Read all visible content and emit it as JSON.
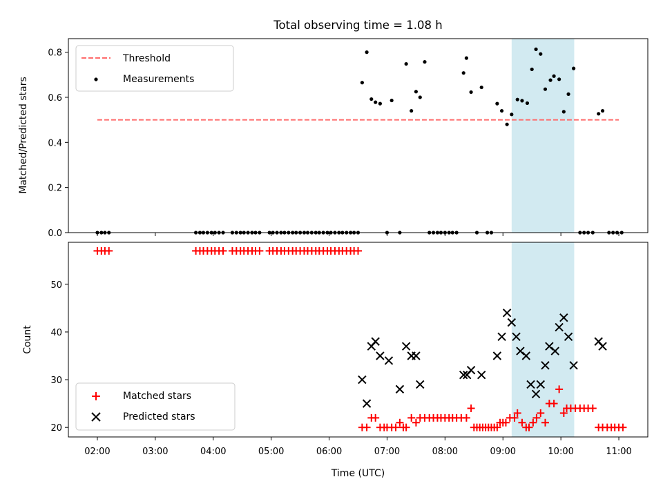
{
  "chart_data": {
    "type": "scatter",
    "title": "Total observing time = 1.08 h",
    "xlabel": "Time (UTC)",
    "x_unit": "hours (UTC)",
    "xlim": [
      1.5,
      11.5
    ],
    "x_ticks": [
      {
        "value": 2,
        "label": "02:00"
      },
      {
        "value": 3,
        "label": "03:00"
      },
      {
        "value": 4,
        "label": "04:00"
      },
      {
        "value": 5,
        "label": "05:00"
      },
      {
        "value": 6,
        "label": "06:00"
      },
      {
        "value": 7,
        "label": "07:00"
      },
      {
        "value": 8,
        "label": "08:00"
      },
      {
        "value": 9,
        "label": "09:00"
      },
      {
        "value": 10,
        "label": "10:00"
      },
      {
        "value": 11,
        "label": "11:00"
      }
    ],
    "highlight_span": {
      "start": 9.15,
      "end": 10.23,
      "color": "#add8e6"
    },
    "panels": [
      {
        "ylabel": "Matched/Predicted stars",
        "ylim": [
          0,
          0.86
        ],
        "y_ticks": [
          "0.0",
          "0.2",
          "0.4",
          "0.6",
          "0.8"
        ],
        "legend": {
          "position": "upper left",
          "entries": [
            "Threshold",
            "Measurements"
          ]
        },
        "threshold": {
          "name": "Threshold",
          "value": 0.5,
          "x_start": 2.0,
          "x_end": 11.0,
          "color": "#ff6b6b"
        },
        "series": [
          {
            "name": "Measurements",
            "color": "#000000",
            "x": [
              2.0,
              2.07,
              2.13,
              2.2,
              3.7,
              3.77,
              3.83,
              3.9,
              3.97,
              4.03,
              4.1,
              4.17,
              4.33,
              4.4,
              4.47,
              4.53,
              4.6,
              4.67,
              4.73,
              4.8,
              4.97,
              5.03,
              5.1,
              5.17,
              5.23,
              5.3,
              5.37,
              5.43,
              5.5,
              5.57,
              5.63,
              5.7,
              5.77,
              5.83,
              5.9,
              5.97,
              6.03,
              6.1,
              6.17,
              6.23,
              6.3,
              6.37,
              6.43,
              6.5,
              6.57,
              6.65,
              6.73,
              6.8,
              6.88,
              7.0,
              7.08,
              7.22,
              7.33,
              7.42,
              7.5,
              7.57,
              7.65,
              7.73,
              7.8,
              7.87,
              7.93,
              8.0,
              8.07,
              8.13,
              8.2,
              8.32,
              8.37,
              8.45,
              8.55,
              8.63,
              8.73,
              8.8,
              8.9,
              8.98,
              9.07,
              9.15,
              9.25,
              9.33,
              9.42,
              9.5,
              9.57,
              9.65,
              9.73,
              9.82,
              9.88,
              9.97,
              10.05,
              10.13,
              10.22,
              10.33,
              10.4,
              10.47,
              10.55,
              10.65,
              10.72,
              10.83,
              10.9,
              10.97,
              11.05
            ],
            "y": [
              0,
              0,
              0,
              0,
              0,
              0,
              0,
              0,
              0,
              0,
              0,
              0,
              0,
              0,
              0,
              0,
              0,
              0,
              0,
              0,
              0,
              0,
              0,
              0,
              0,
              0,
              0,
              0,
              0,
              0,
              0,
              0,
              0,
              0,
              0,
              0,
              0,
              0,
              0,
              0,
              0,
              0,
              0,
              0,
              0.665,
              0.8,
              0.592,
              0.578,
              0.572,
              0,
              0.586,
              0,
              0.748,
              0.54,
              0.625,
              0.6,
              0.757,
              0,
              0,
              0,
              0,
              0,
              0,
              0,
              0,
              0.708,
              0.774,
              0.623,
              0,
              0.644,
              0,
              0,
              0.572,
              0.54,
              0.48,
              0.524,
              0.59,
              0.585,
              0.574,
              0.724,
              0.813,
              0.792,
              0.636,
              0.676,
              0.694,
              0.68,
              0.536,
              0.614,
              0.728,
              0,
              0,
              0,
              0,
              0.527,
              0.54,
              0,
              0,
              0,
              0
            ]
          }
        ]
      },
      {
        "ylabel": "Count",
        "ylim": [
          18,
          58.8
        ],
        "y_ticks": [
          "20",
          "30",
          "40",
          "50"
        ],
        "legend": {
          "position": "lower left",
          "entries": [
            "Matched stars",
            "Predicted stars"
          ]
        },
        "series": [
          {
            "name": "Matched stars",
            "color": "#ff0000",
            "marker": "+",
            "x": [
              2.0,
              2.07,
              2.13,
              2.2,
              3.7,
              3.77,
              3.83,
              3.9,
              3.97,
              4.03,
              4.1,
              4.17,
              4.33,
              4.4,
              4.47,
              4.53,
              4.6,
              4.67,
              4.73,
              4.8,
              4.97,
              5.03,
              5.1,
              5.17,
              5.23,
              5.3,
              5.37,
              5.43,
              5.5,
              5.57,
              5.63,
              5.7,
              5.77,
              5.83,
              5.9,
              5.97,
              6.03,
              6.1,
              6.17,
              6.23,
              6.3,
              6.37,
              6.43,
              6.5,
              6.57,
              6.65,
              6.73,
              6.8,
              6.88,
              6.95,
              7.0,
              7.08,
              7.15,
              7.22,
              7.28,
              7.33,
              7.42,
              7.5,
              7.57,
              7.65,
              7.73,
              7.8,
              7.87,
              7.93,
              8.0,
              8.07,
              8.13,
              8.2,
              8.28,
              8.37,
              8.45,
              8.5,
              8.55,
              8.6,
              8.65,
              8.7,
              8.75,
              8.8,
              8.85,
              8.9,
              8.95,
              9.0,
              9.05,
              9.12,
              9.2,
              9.25,
              9.33,
              9.4,
              9.45,
              9.52,
              9.58,
              9.65,
              9.73,
              9.8,
              9.88,
              9.97,
              10.05,
              10.1,
              10.17,
              10.25,
              10.33,
              10.4,
              10.47,
              10.55,
              10.65,
              10.72,
              10.8,
              10.87,
              10.93,
              11.0,
              11.07
            ],
            "y": [
              57,
              57,
              57,
              57,
              57,
              57,
              57,
              57,
              57,
              57,
              57,
              57,
              57,
              57,
              57,
              57,
              57,
              57,
              57,
              57,
              57,
              57,
              57,
              57,
              57,
              57,
              57,
              57,
              57,
              57,
              57,
              57,
              57,
              57,
              57,
              57,
              57,
              57,
              57,
              57,
              57,
              57,
              57,
              57,
              20,
              20,
              22,
              22,
              20,
              20,
              20,
              20,
              20,
              21,
              20,
              20,
              22,
              21,
              22,
              22,
              22,
              22,
              22,
              22,
              22,
              22,
              22,
              22,
              22,
              22,
              24,
              20,
              20,
              20,
              20,
              20,
              20,
              20,
              20,
              20,
              21,
              21,
              21,
              22,
              22,
              23,
              21,
              20,
              20,
              21,
              22,
              23,
              21,
              25,
              25,
              28,
              23,
              24,
              24,
              24,
              24,
              24,
              24,
              24,
              20,
              20,
              20,
              20,
              20,
              20,
              20
            ]
          },
          {
            "name": "Predicted stars",
            "color": "#000000",
            "marker": "x",
            "x": [
              6.57,
              6.65,
              6.73,
              6.8,
              6.88,
              7.03,
              7.22,
              7.33,
              7.42,
              7.5,
              7.57,
              8.32,
              8.38,
              8.45,
              8.63,
              8.9,
              8.98,
              9.07,
              9.15,
              9.23,
              9.3,
              9.4,
              9.48,
              9.57,
              9.65,
              9.73,
              9.8,
              9.9,
              9.97,
              10.05,
              10.13,
              10.22,
              10.65,
              10.72
            ],
            "y": [
              30,
              25,
              37,
              38,
              35,
              34,
              28,
              37,
              35,
              35,
              29,
              31,
              31,
              32,
              31,
              35,
              39,
              44,
              42,
              39,
              36,
              35,
              29,
              27,
              29,
              33,
              37,
              36,
              41,
              43,
              39,
              33,
              38,
              37
            ]
          }
        ]
      }
    ]
  }
}
